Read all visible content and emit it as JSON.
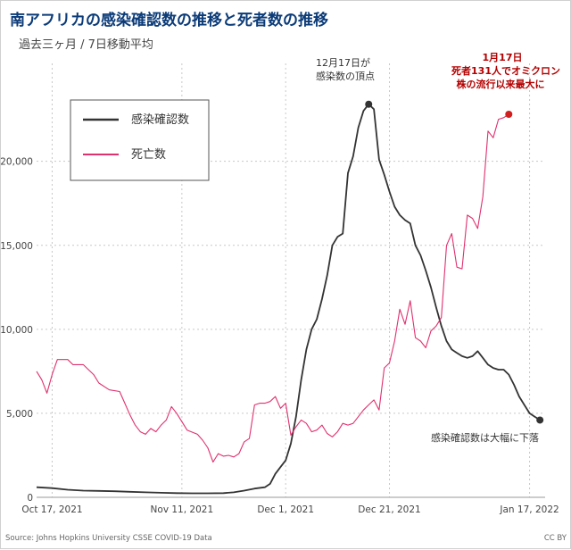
{
  "chart_data": {
    "type": "line",
    "title": "南アフリカの感染確認数の推移と死者数の推移",
    "subtitle": "過去三ヶ月 / 7日移動平均",
    "y_ticks": [
      0,
      5000,
      10000,
      15000,
      20000
    ],
    "y_tick_labels": [
      "0",
      "5,000",
      "10,000",
      "15,000",
      "20,000"
    ],
    "ylim": [
      0,
      24500
    ],
    "x_start": "2021-10-14",
    "x_end": "2022-01-20",
    "x_ticks": [
      "2021-10-17",
      "2021-11-11",
      "2021-12-01",
      "2021-12-21",
      "2022-01-17"
    ],
    "x_tick_labels": [
      "Oct 17, 2021",
      "Nov 11, 2021",
      "Dec 1, 2021",
      "Dec 21, 2021",
      "Jan 17, 2022"
    ],
    "grid": true,
    "legend_position": "top-left",
    "series": [
      {
        "name": "感染確認数",
        "color": "#333333",
        "points": [
          [
            "2021-10-14",
            600
          ],
          [
            "2021-10-17",
            550
          ],
          [
            "2021-10-20",
            450
          ],
          [
            "2021-10-23",
            400
          ],
          [
            "2021-10-26",
            380
          ],
          [
            "2021-10-29",
            360
          ],
          [
            "2021-11-01",
            330
          ],
          [
            "2021-11-04",
            300
          ],
          [
            "2021-11-07",
            270
          ],
          [
            "2021-11-10",
            250
          ],
          [
            "2021-11-13",
            240
          ],
          [
            "2021-11-16",
            240
          ],
          [
            "2021-11-19",
            250
          ],
          [
            "2021-11-21",
            300
          ],
          [
            "2021-11-23",
            400
          ],
          [
            "2021-11-25",
            520
          ],
          [
            "2021-11-27",
            600
          ],
          [
            "2021-11-28",
            800
          ],
          [
            "2021-11-29",
            1400
          ],
          [
            "2021-11-30",
            1800
          ],
          [
            "2021-12-01",
            2200
          ],
          [
            "2021-12-02",
            3200
          ],
          [
            "2021-12-03",
            4800
          ],
          [
            "2021-12-04",
            7000
          ],
          [
            "2021-12-05",
            8800
          ],
          [
            "2021-12-06",
            10000
          ],
          [
            "2021-12-07",
            10600
          ],
          [
            "2021-12-08",
            11800
          ],
          [
            "2021-12-09",
            13200
          ],
          [
            "2021-12-10",
            15000
          ],
          [
            "2021-12-11",
            15500
          ],
          [
            "2021-12-12",
            15700
          ],
          [
            "2021-12-13",
            19300
          ],
          [
            "2021-12-14",
            20300
          ],
          [
            "2021-12-15",
            22000
          ],
          [
            "2021-12-16",
            23000
          ],
          [
            "2021-12-17",
            23400
          ],
          [
            "2021-12-18",
            23100
          ],
          [
            "2021-12-19",
            20100
          ],
          [
            "2021-12-20",
            19200
          ],
          [
            "2021-12-21",
            18200
          ],
          [
            "2021-12-22",
            17300
          ],
          [
            "2021-12-23",
            16800
          ],
          [
            "2021-12-24",
            16500
          ],
          [
            "2021-12-25",
            16300
          ],
          [
            "2021-12-26",
            15000
          ],
          [
            "2021-12-27",
            14400
          ],
          [
            "2021-12-28",
            13500
          ],
          [
            "2021-12-29",
            12500
          ],
          [
            "2021-12-30",
            11300
          ],
          [
            "2021-12-31",
            10200
          ],
          [
            "2022-01-01",
            9300
          ],
          [
            "2022-01-02",
            8800
          ],
          [
            "2022-01-03",
            8600
          ],
          [
            "2022-01-04",
            8400
          ],
          [
            "2022-01-05",
            8300
          ],
          [
            "2022-01-06",
            8400
          ],
          [
            "2022-01-07",
            8700
          ],
          [
            "2022-01-08",
            8300
          ],
          [
            "2022-01-09",
            7900
          ],
          [
            "2022-01-10",
            7700
          ],
          [
            "2022-01-11",
            7600
          ],
          [
            "2022-01-12",
            7600
          ],
          [
            "2022-01-13",
            7300
          ],
          [
            "2022-01-14",
            6700
          ],
          [
            "2022-01-15",
            6000
          ],
          [
            "2022-01-16",
            5500
          ],
          [
            "2022-01-17",
            5000
          ],
          [
            "2022-01-18",
            4800
          ],
          [
            "2022-01-19",
            4600
          ]
        ]
      },
      {
        "name": "死亡数",
        "color": "#e0306e",
        "points": [
          [
            "2021-10-14",
            7500
          ],
          [
            "2021-10-15",
            7000
          ],
          [
            "2021-10-16",
            6200
          ],
          [
            "2021-10-17",
            7300
          ],
          [
            "2021-10-18",
            8200
          ],
          [
            "2021-10-20",
            8200
          ],
          [
            "2021-10-21",
            7900
          ],
          [
            "2021-10-23",
            7900
          ],
          [
            "2021-10-25",
            7300
          ],
          [
            "2021-10-26",
            6800
          ],
          [
            "2021-10-28",
            6400
          ],
          [
            "2021-10-30",
            6300
          ],
          [
            "2021-10-31",
            5600
          ],
          [
            "2021-11-01",
            4900
          ],
          [
            "2021-11-02",
            4300
          ],
          [
            "2021-11-03",
            3900
          ],
          [
            "2021-11-04",
            3750
          ],
          [
            "2021-11-05",
            4100
          ],
          [
            "2021-11-06",
            3900
          ],
          [
            "2021-11-07",
            4300
          ],
          [
            "2021-11-08",
            4600
          ],
          [
            "2021-11-09",
            5400
          ],
          [
            "2021-11-10",
            5000
          ],
          [
            "2021-11-11",
            4500
          ],
          [
            "2021-11-12",
            4000
          ],
          [
            "2021-11-14",
            3750
          ],
          [
            "2021-11-15",
            3400
          ],
          [
            "2021-11-16",
            2950
          ],
          [
            "2021-11-17",
            2100
          ],
          [
            "2021-11-18",
            2600
          ],
          [
            "2021-11-19",
            2450
          ],
          [
            "2021-11-20",
            2500
          ],
          [
            "2021-11-21",
            2400
          ],
          [
            "2021-11-22",
            2600
          ],
          [
            "2021-11-23",
            3300
          ],
          [
            "2021-11-24",
            3500
          ],
          [
            "2021-11-25",
            5500
          ],
          [
            "2021-11-26",
            5600
          ],
          [
            "2021-11-27",
            5600
          ],
          [
            "2021-11-28",
            5700
          ],
          [
            "2021-11-29",
            6000
          ],
          [
            "2021-11-30",
            5300
          ],
          [
            "2021-12-01",
            5600
          ],
          [
            "2021-12-02",
            3700
          ],
          [
            "2021-12-03",
            4200
          ],
          [
            "2021-12-04",
            4600
          ],
          [
            "2021-12-05",
            4400
          ],
          [
            "2021-12-06",
            3900
          ],
          [
            "2021-12-07",
            4000
          ],
          [
            "2021-12-08",
            4300
          ],
          [
            "2021-12-09",
            3800
          ],
          [
            "2021-12-10",
            3600
          ],
          [
            "2021-12-11",
            3900
          ],
          [
            "2021-12-12",
            4400
          ],
          [
            "2021-12-13",
            4300
          ],
          [
            "2021-12-14",
            4400
          ],
          [
            "2021-12-15",
            4800
          ],
          [
            "2021-12-16",
            5200
          ],
          [
            "2021-12-17",
            5500
          ],
          [
            "2021-12-18",
            5800
          ],
          [
            "2021-12-19",
            5200
          ],
          [
            "2021-12-20",
            7700
          ],
          [
            "2021-12-21",
            8000
          ],
          [
            "2021-12-22",
            9300
          ],
          [
            "2021-12-23",
            11200
          ],
          [
            "2021-12-24",
            10300
          ],
          [
            "2021-12-25",
            11700
          ],
          [
            "2021-12-26",
            9500
          ],
          [
            "2021-12-27",
            9300
          ],
          [
            "2021-12-28",
            8900
          ],
          [
            "2021-12-29",
            9900
          ],
          [
            "2021-12-30",
            10200
          ],
          [
            "2021-12-31",
            10700
          ],
          [
            "2022-01-01",
            15000
          ],
          [
            "2022-01-02",
            15700
          ],
          [
            "2022-01-03",
            13700
          ],
          [
            "2022-01-04",
            13600
          ],
          [
            "2022-01-05",
            16800
          ],
          [
            "2022-01-06",
            16600
          ],
          [
            "2022-01-07",
            16000
          ],
          [
            "2022-01-08",
            17900
          ],
          [
            "2022-01-09",
            21800
          ],
          [
            "2022-01-10",
            21400
          ],
          [
            "2022-01-11",
            22500
          ],
          [
            "2022-01-12",
            22600
          ],
          [
            "2022-01-13",
            22800
          ]
        ]
      }
    ],
    "annotations": [
      {
        "lines": [
          "12月17日が",
          "感染数の頂点"
        ],
        "style": "normal"
      },
      {
        "lines": [
          "1月17日",
          "死者131人でオミクロン",
          "株の流行以来最大に"
        ],
        "style": "red"
      },
      {
        "lines": [
          "感染確認数は大幅に下落"
        ],
        "style": "normal"
      }
    ],
    "source": "Source: Johns Hopkins University CSSE COVID-19 Data",
    "license": "CC BY"
  }
}
